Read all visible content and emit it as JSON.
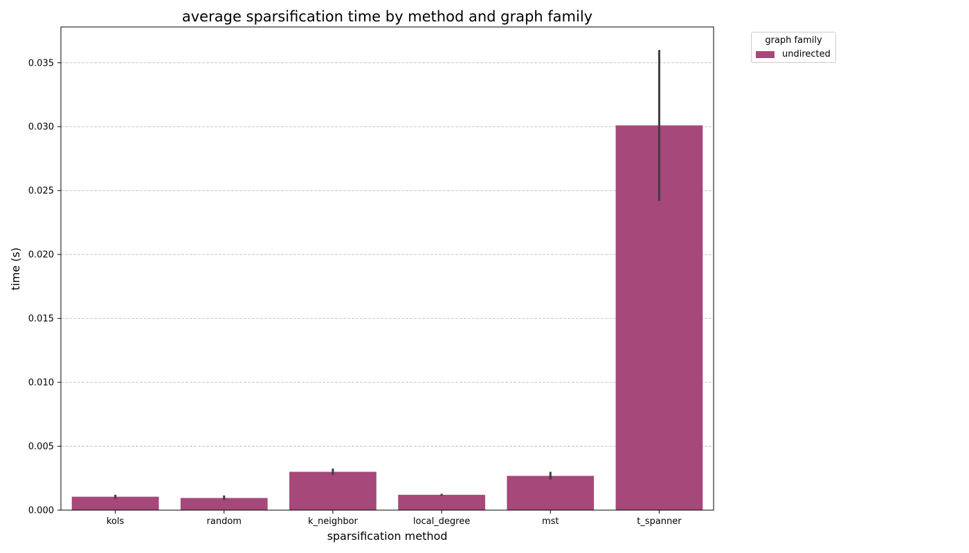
{
  "chart_data": {
    "type": "bar",
    "title": "average sparsification time by method and graph family",
    "xlabel": "sparsification method",
    "ylabel": "time (s)",
    "categories": [
      "kols",
      "random",
      "k_neighbor",
      "local_degree",
      "mst",
      "t_spanner"
    ],
    "series": [
      {
        "name": "undirected",
        "color": "#a64879",
        "values": [
          0.00105,
          0.00095,
          0.003,
          0.0012,
          0.00268,
          0.0301
        ],
        "error_low": [
          0.0009,
          0.0008,
          0.00275,
          0.00112,
          0.0024,
          0.0242
        ],
        "error_high": [
          0.0012,
          0.00115,
          0.00325,
          0.00128,
          0.003,
          0.036
        ]
      }
    ],
    "ylim": [
      0,
      0.0378
    ],
    "yticks": [
      0.0,
      0.005,
      0.01,
      0.015,
      0.02,
      0.025,
      0.03,
      0.035
    ],
    "ytick_labels": [
      "0.000",
      "0.005",
      "0.010",
      "0.015",
      "0.020",
      "0.025",
      "0.030",
      "0.035"
    ],
    "grid": "horizontal dashed",
    "legend": {
      "title": "graph family",
      "placement": "outside-top-right"
    }
  }
}
